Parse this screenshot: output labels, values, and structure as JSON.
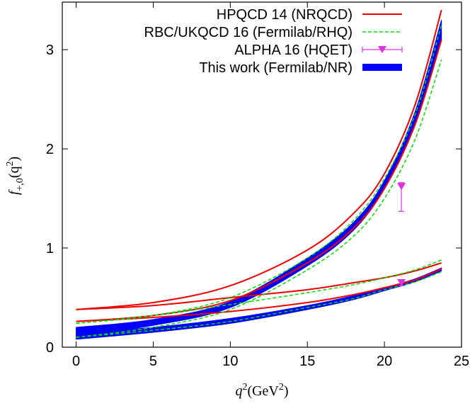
{
  "chart_data": {
    "type": "line",
    "xlabel": [
      "q",
      "2",
      "(GeV",
      "2",
      ")"
    ],
    "ylabel": [
      "f",
      "+,0",
      "(q",
      "2",
      ")"
    ],
    "xlim": [
      -0.9,
      25
    ],
    "ylim": [
      0,
      3.48
    ],
    "xticks": [
      0,
      5,
      10,
      15,
      20,
      25
    ],
    "yticks": [
      0,
      1,
      2,
      3
    ],
    "legend": "top-right",
    "x": [
      0,
      5,
      10,
      15,
      18,
      20,
      22,
      23.7
    ],
    "series": [
      {
        "name": "HPQCD 14 (NRQCD)",
        "color": "#ee0000",
        "style": "solid",
        "curves": [
          [
            0.38,
            0.45,
            0.62,
            0.98,
            1.35,
            1.75,
            2.45,
            3.4
          ],
          [
            0.26,
            0.32,
            0.47,
            0.85,
            1.2,
            1.6,
            2.25,
            3.1
          ],
          [
            0.38,
            0.42,
            0.5,
            0.58,
            0.65,
            0.7,
            0.77,
            0.85
          ],
          [
            0.26,
            0.3,
            0.36,
            0.45,
            0.53,
            0.6,
            0.68,
            0.79
          ]
        ]
      },
      {
        "name": "RBC/UKQCD 16 (Fermilab/RHQ)",
        "color": "#00dd00",
        "style": "dashed",
        "curves": [
          [
            0.24,
            0.32,
            0.5,
            0.9,
            1.28,
            1.7,
            2.35,
            3.25
          ],
          [
            0.1,
            0.2,
            0.38,
            0.78,
            1.12,
            1.5,
            2.1,
            2.9
          ],
          [
            0.24,
            0.32,
            0.43,
            0.55,
            0.63,
            0.7,
            0.78,
            0.88
          ],
          [
            0.1,
            0.17,
            0.26,
            0.4,
            0.49,
            0.58,
            0.66,
            0.76
          ]
        ]
      },
      {
        "name": "ALPHA 16 (HQET)",
        "color": "#e030e0",
        "style": "points",
        "points": {
          "x": [
            21.1,
            21.1
          ],
          "values": [
            1.62,
            0.65
          ],
          "err_minus": [
            0.25,
            0.03
          ],
          "err_plus": [
            0.04,
            0.03
          ]
        }
      },
      {
        "name": "This work (Fermilab/NR)",
        "color": "#0000ff",
        "style": "band",
        "bands": [
          {
            "lower": [
              0.12,
              0.22,
              0.4,
              0.82,
              1.18,
              1.6,
              2.25,
              3.1
            ],
            "upper": [
              0.2,
              0.28,
              0.46,
              0.9,
              1.26,
              1.68,
              2.38,
              3.3
            ]
          },
          {
            "lower": [
              0.08,
              0.15,
              0.24,
              0.38,
              0.48,
              0.57,
              0.66,
              0.77
            ],
            "upper": [
              0.14,
              0.2,
              0.29,
              0.42,
              0.52,
              0.6,
              0.69,
              0.8
            ]
          }
        ]
      }
    ]
  }
}
